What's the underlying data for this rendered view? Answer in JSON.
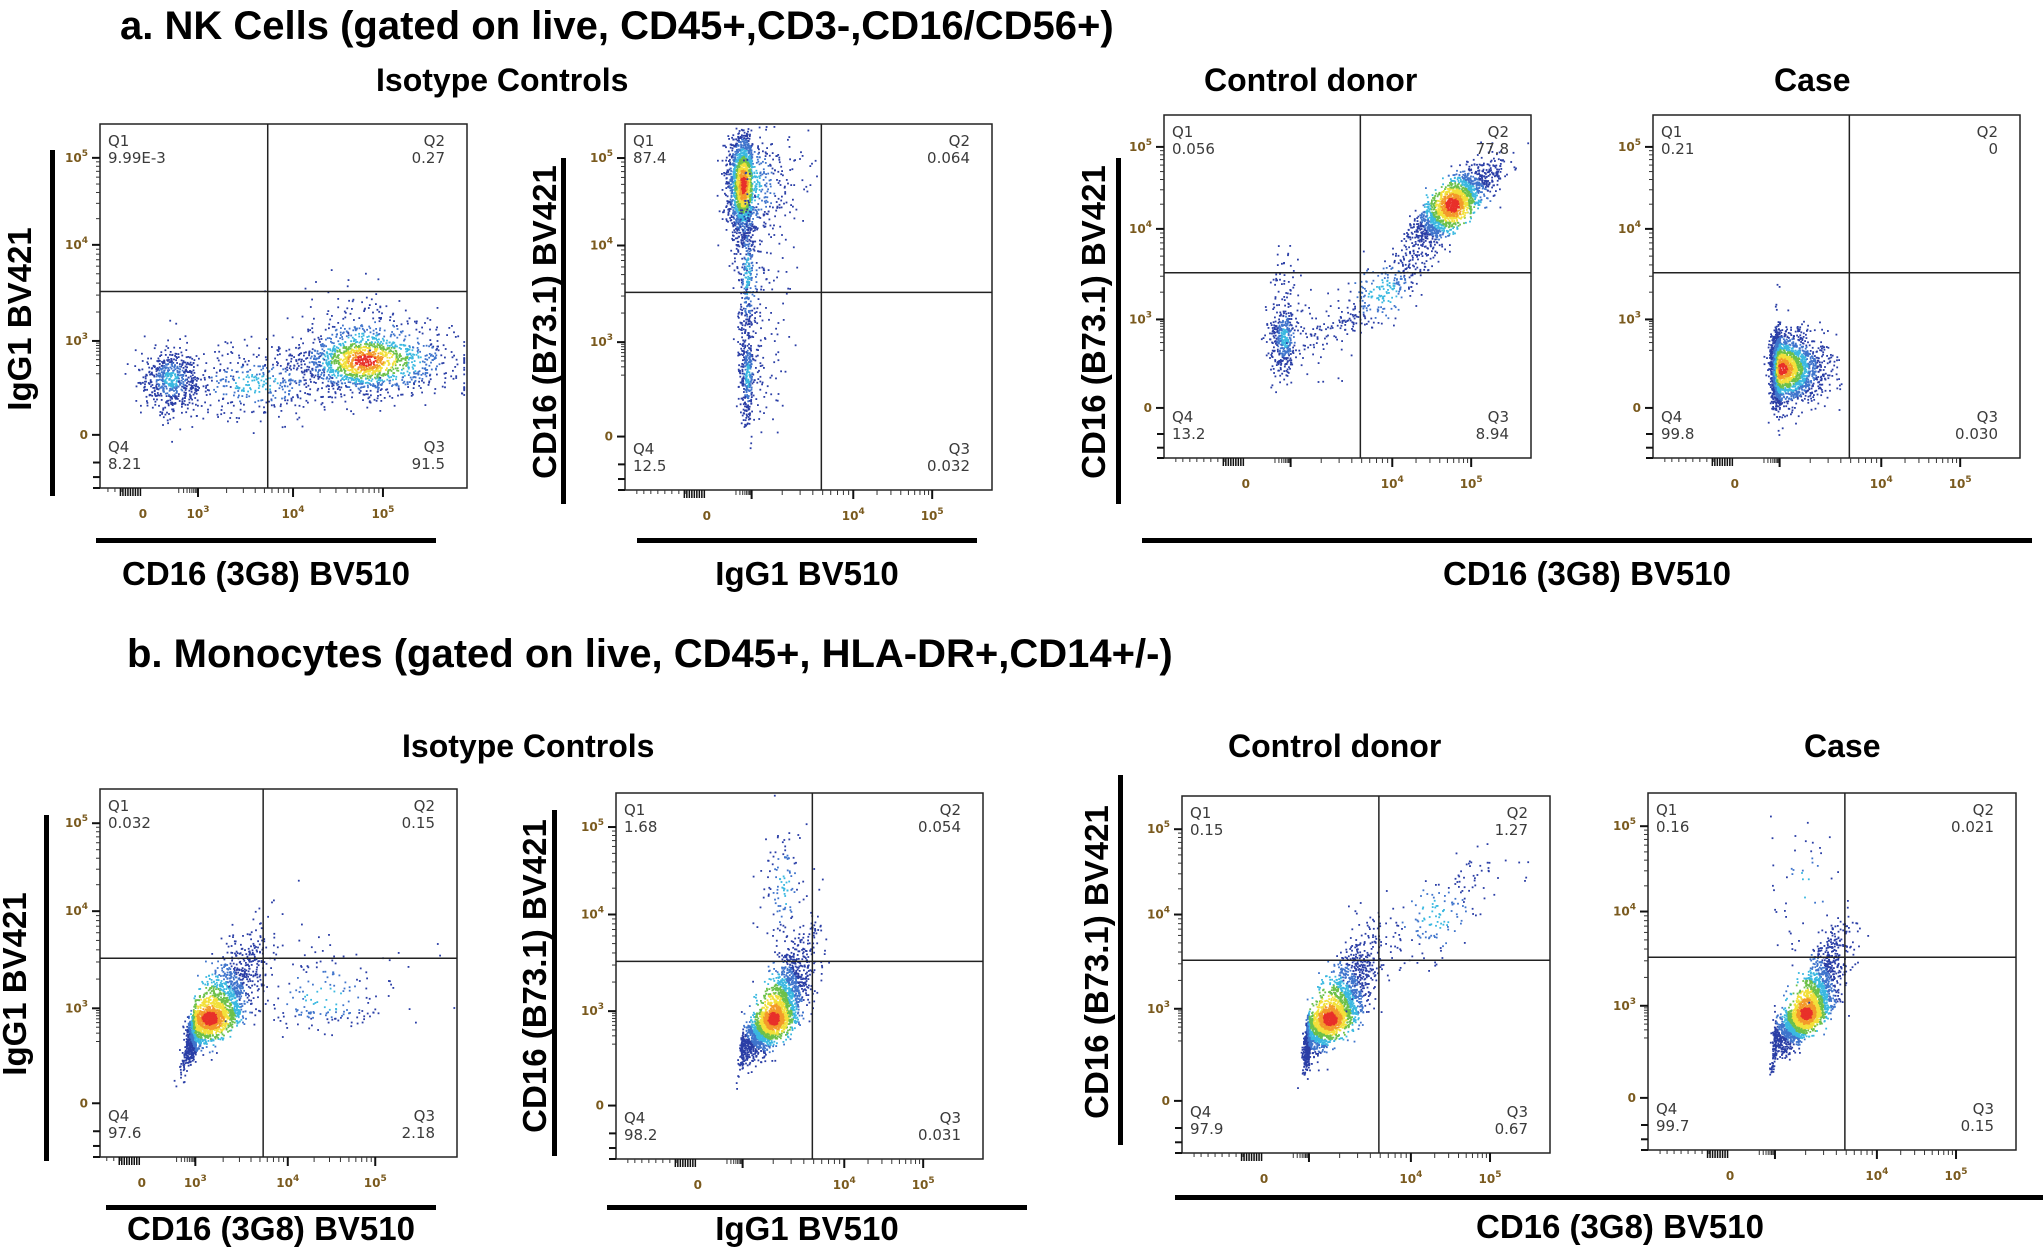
{
  "figure": {
    "sections": [
      {
        "id": "a",
        "title": "a. NK Cells (gated on live, CD45+,CD3-,CD16/CD56+)",
        "group_titles": [
          "Isotype Controls",
          "Control donor",
          "Case"
        ],
        "x_axis_titles": [
          "CD16 (3G8) BV510",
          "IgG1 BV510",
          "CD16 (3G8) BV510"
        ],
        "y_axis_titles": [
          "IgG1 BV421",
          "CD16 (B73.1) BV421",
          "CD16 (B73.1) BV421"
        ]
      },
      {
        "id": "b",
        "title": "b. Monocytes (gated on live, CD45+, HLA-DR+,CD14+/-)",
        "group_titles": [
          "Isotype Controls",
          "Control donor",
          "Case"
        ],
        "x_axis_titles": [
          "CD16 (3G8) BV510",
          "IgG1 BV510",
          "CD16 (3G8) BV510"
        ],
        "y_axis_titles": [
          "IgG1 BV421",
          "CD16 (B73.1) BV421",
          "CD16 (B73.1) BV421"
        ]
      }
    ]
  },
  "chart_data": [
    {
      "type": "scatter",
      "subtype": "flow-cytometry-pseudocolor-quadrant",
      "id": "a1",
      "section": "a. NK Cells",
      "group": "Isotype Controls",
      "xlabel": "CD16 (3G8) BV510",
      "ylabel": "IgG1 BV421",
      "x_scale": "biexponential",
      "y_scale": "biexponential",
      "x_ticks": [
        "0",
        "10^3",
        "10^4",
        "10^5"
      ],
      "y_ticks": [
        "0",
        "10^3",
        "10^4",
        "10^5"
      ],
      "quadrants": {
        "Q1": "9.99E-3",
        "Q2": "0.27",
        "Q3": "91.5",
        "Q4": "8.21"
      },
      "populations": [
        {
          "center_log": [
            4.8,
            2.6
          ],
          "spread_log": [
            0.35,
            0.35
          ],
          "weight": 0.62,
          "peak": "red"
        },
        {
          "center_log": [
            2.0,
            2.2
          ],
          "spread_log": [
            0.55,
            0.35
          ],
          "weight": 0.22,
          "peak": "blue"
        },
        {
          "center_log": [
            3.6,
            2.1
          ],
          "spread_log": [
            0.5,
            0.4
          ],
          "weight": 0.16,
          "peak": "blue"
        }
      ]
    },
    {
      "type": "scatter",
      "subtype": "flow-cytometry-pseudocolor-quadrant",
      "id": "a2",
      "section": "a. NK Cells",
      "group": "Isotype Controls",
      "xlabel": "IgG1 BV510",
      "ylabel": "CD16 (B73.1) BV421",
      "x_scale": "biexponential",
      "y_scale": "biexponential",
      "x_ticks": [
        "0",
        "10^4",
        "10^5"
      ],
      "y_ticks": [
        "0",
        "10^3",
        "10^4",
        "10^5"
      ],
      "quadrants": {
        "Q1": "87.4",
        "Q2": "0.064",
        "Q3": "0.032",
        "Q4": "12.5"
      },
      "populations": [
        {
          "center_log": [
            2.6,
            4.7
          ],
          "spread_log": [
            0.35,
            0.3
          ],
          "weight": 0.72,
          "peak": "red"
        },
        {
          "center_log": [
            2.8,
            3.7
          ],
          "spread_log": [
            0.25,
            0.45
          ],
          "weight": 0.14,
          "peak": "blue"
        },
        {
          "center_log": [
            2.8,
            2.3
          ],
          "spread_log": [
            0.2,
            0.55
          ],
          "weight": 0.14,
          "peak": "blue"
        }
      ]
    },
    {
      "type": "scatter",
      "subtype": "flow-cytometry-pseudocolor-quadrant",
      "id": "a3",
      "section": "a. NK Cells",
      "group": "Control donor",
      "xlabel": "CD16 (3G8) BV510",
      "ylabel": "CD16 (B73.1) BV421",
      "x_scale": "biexponential",
      "y_scale": "biexponential",
      "x_ticks": [
        "0",
        "10^4",
        "10^5"
      ],
      "y_ticks": [
        "0",
        "10^3",
        "10^4",
        "10^5"
      ],
      "quadrants": {
        "Q1": "0.056",
        "Q2": "77.8",
        "Q3": "8.94",
        "Q4": "13.2"
      },
      "populations": [
        {
          "center_log": [
            4.75,
            4.3
          ],
          "spread_log": [
            0.25,
            0.25
          ],
          "weight": 0.7,
          "peak": "red",
          "correlated": true
        },
        {
          "center_log": [
            2.7,
            2.6
          ],
          "spread_log": [
            0.35,
            0.45
          ],
          "weight": 0.18,
          "peak": "blue"
        },
        {
          "center_log": [
            3.9,
            3.3
          ],
          "spread_log": [
            0.3,
            0.3
          ],
          "weight": 0.12,
          "peak": "blue",
          "correlated": true
        }
      ]
    },
    {
      "type": "scatter",
      "subtype": "flow-cytometry-pseudocolor-quadrant",
      "id": "a4",
      "section": "a. NK Cells",
      "group": "Case",
      "xlabel": "CD16 (3G8) BV510",
      "ylabel": "CD16 (B73.1) BV421",
      "x_scale": "biexponential",
      "y_scale": "biexponential",
      "x_ticks": [
        "0",
        "10^4",
        "10^5"
      ],
      "y_ticks": [
        "0",
        "10^3",
        "10^4",
        "10^5"
      ],
      "quadrants": {
        "Q1": "0.21",
        "Q2": "0",
        "Q3": "0.030",
        "Q4": "99.8"
      },
      "populations": [
        {
          "center_log": [
            3.0,
            1.9
          ],
          "spread_log": [
            0.2,
            0.4
          ],
          "weight": 1.0,
          "peak": "red"
        }
      ]
    },
    {
      "type": "scatter",
      "subtype": "flow-cytometry-pseudocolor-quadrant",
      "id": "b1",
      "section": "b. Monocytes",
      "group": "Isotype Controls",
      "xlabel": "CD16 (3G8) BV510",
      "ylabel": "IgG1 BV421",
      "x_scale": "biexponential",
      "y_scale": "biexponential",
      "x_ticks": [
        "0",
        "10^3",
        "10^4",
        "10^5"
      ],
      "y_ticks": [
        "0",
        "10^3",
        "10^4",
        "10^5"
      ],
      "quadrants": {
        "Q1": "0.032",
        "Q2": "0.15",
        "Q3": "2.18",
        "Q4": "97.6"
      },
      "populations": [
        {
          "center_log": [
            3.15,
            2.8
          ],
          "spread_log": [
            0.25,
            0.4
          ],
          "weight": 0.93,
          "peak": "red",
          "correlated": true
        },
        {
          "center_log": [
            4.4,
            3.1
          ],
          "spread_log": [
            0.45,
            0.3
          ],
          "weight": 0.07,
          "peak": "blue"
        }
      ]
    },
    {
      "type": "scatter",
      "subtype": "flow-cytometry-pseudocolor-quadrant",
      "id": "b2",
      "section": "b. Monocytes",
      "group": "Isotype Controls",
      "xlabel": "IgG1 BV510",
      "ylabel": "CD16 (B73.1) BV421",
      "x_scale": "biexponential",
      "y_scale": "biexponential",
      "x_ticks": [
        "0",
        "10^4",
        "10^5"
      ],
      "y_ticks": [
        "0",
        "10^3",
        "10^4",
        "10^5"
      ],
      "quadrants": {
        "Q1": "1.68",
        "Q2": "0.054",
        "Q3": "0.031",
        "Q4": "98.2"
      },
      "populations": [
        {
          "center_log": [
            3.3,
            2.85
          ],
          "spread_log": [
            0.17,
            0.4
          ],
          "weight": 0.95,
          "peak": "red",
          "correlated": true
        },
        {
          "center_log": [
            3.4,
            4.3
          ],
          "spread_log": [
            0.12,
            0.4
          ],
          "weight": 0.05,
          "peak": "blue"
        }
      ]
    },
    {
      "type": "scatter",
      "subtype": "flow-cytometry-pseudocolor-quadrant",
      "id": "b3",
      "section": "b. Monocytes",
      "group": "Control donor",
      "xlabel": "CD16 (3G8) BV510",
      "ylabel": "CD16 (B73.1) BV421",
      "x_scale": "biexponential",
      "y_scale": "biexponential",
      "x_ticks": [
        "0",
        "10^4",
        "10^5"
      ],
      "y_ticks": [
        "0",
        "10^3",
        "10^4",
        "10^5"
      ],
      "quadrants": {
        "Q1": "0.15",
        "Q2": "1.27",
        "Q3": "0.67",
        "Q4": "97.9"
      },
      "populations": [
        {
          "center_log": [
            3.2,
            2.8
          ],
          "spread_log": [
            0.2,
            0.42
          ],
          "weight": 0.93,
          "peak": "red",
          "correlated": true
        },
        {
          "center_log": [
            4.3,
            4.0
          ],
          "spread_log": [
            0.4,
            0.35
          ],
          "weight": 0.07,
          "peak": "blue",
          "correlated": true
        }
      ]
    },
    {
      "type": "scatter",
      "subtype": "flow-cytometry-pseudocolor-quadrant",
      "id": "b4",
      "section": "b. Monocytes",
      "group": "Case",
      "xlabel": "CD16 (3G8) BV510",
      "ylabel": "CD16 (B73.1) BV421",
      "x_scale": "biexponential",
      "y_scale": "biexponential",
      "x_ticks": [
        "0",
        "10^4",
        "10^5"
      ],
      "y_ticks": [
        "0",
        "10^3",
        "10^4",
        "10^5"
      ],
      "quadrants": {
        "Q1": "0.16",
        "Q2": "0.021",
        "Q3": "0.15",
        "Q4": "99.7"
      },
      "populations": [
        {
          "center_log": [
            3.3,
            2.85
          ],
          "spread_log": [
            0.17,
            0.4
          ],
          "weight": 0.98,
          "peak": "red",
          "correlated": true
        },
        {
          "center_log": [
            3.3,
            4.3
          ],
          "spread_log": [
            0.2,
            0.4
          ],
          "weight": 0.02,
          "peak": "blue"
        }
      ]
    }
  ],
  "colors": {
    "density_scale": [
      "#2a3ea6",
      "#3f74cc",
      "#3ab8e0",
      "#6cc04a",
      "#f2e03a",
      "#f39a2a",
      "#e8302a"
    ],
    "tick_label": "#7a5a1e",
    "quadrant_label": "#3b3b3b",
    "frame": "#222222"
  }
}
